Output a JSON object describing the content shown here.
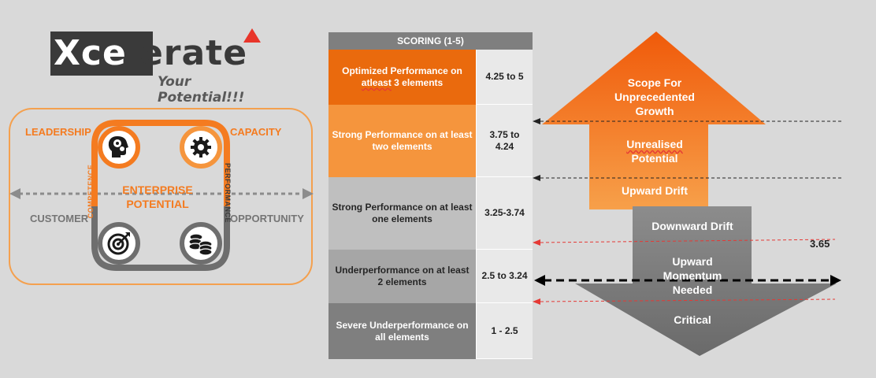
{
  "logo": {
    "word_part1": "Xce",
    "word_part2": "lerate",
    "tagline": "Your Potential!!!"
  },
  "diagram": {
    "leadership": "LEADERSHIP",
    "capacity": "CAPACITY",
    "customer": "CUSTOMER",
    "opportunity": "OPPORTUNITY",
    "competence": "COMPETENCE",
    "performance": "PERFORMANCE",
    "center_line1": "ENTERPRISE",
    "center_line2": "POTENTIAL"
  },
  "table": {
    "header": "SCORING (1-5)",
    "rows": [
      {
        "desc_before": "Optimized Performance on ",
        "desc_flag": "atleast",
        "desc_after": " 3 elements",
        "score": "4.25 to 5",
        "bg": "#ea6a0d",
        "fg": "#ffffff"
      },
      {
        "desc": "Strong Performance on at least two elements",
        "score": "3.75 to 4.24",
        "bg": "#f5953d",
        "fg": "#ffffff"
      },
      {
        "desc": "Strong Performance on at least one elements",
        "score": "3.25-3.74",
        "bg": "#bfbfbf",
        "fg": "#262626"
      },
      {
        "desc": "Underperformance on at least 2 elements",
        "score": "2.5 to 3.24",
        "bg": "#a6a6a6",
        "fg": "#262626"
      },
      {
        "desc": "Severe Underperformance on all elements",
        "score": "1 - 2.5",
        "bg": "#7f7f7f",
        "fg": "#ffffff"
      }
    ]
  },
  "arrows": {
    "up_head": "Scope For Unprecedented Growth",
    "up_mid_flag": "Unrealised",
    "up_mid_rest": "Potential",
    "up_low": "Upward Drift",
    "down_top": "Downward Drift",
    "down_mid": "Upward Momentum Needed",
    "down_low": "Critical",
    "score_value": "3.65"
  },
  "colors": {
    "orange": "#f47b20",
    "orange_light": "#f5953d",
    "grey_arrow": "#7f7f7f",
    "red_dash": "#e53935"
  }
}
